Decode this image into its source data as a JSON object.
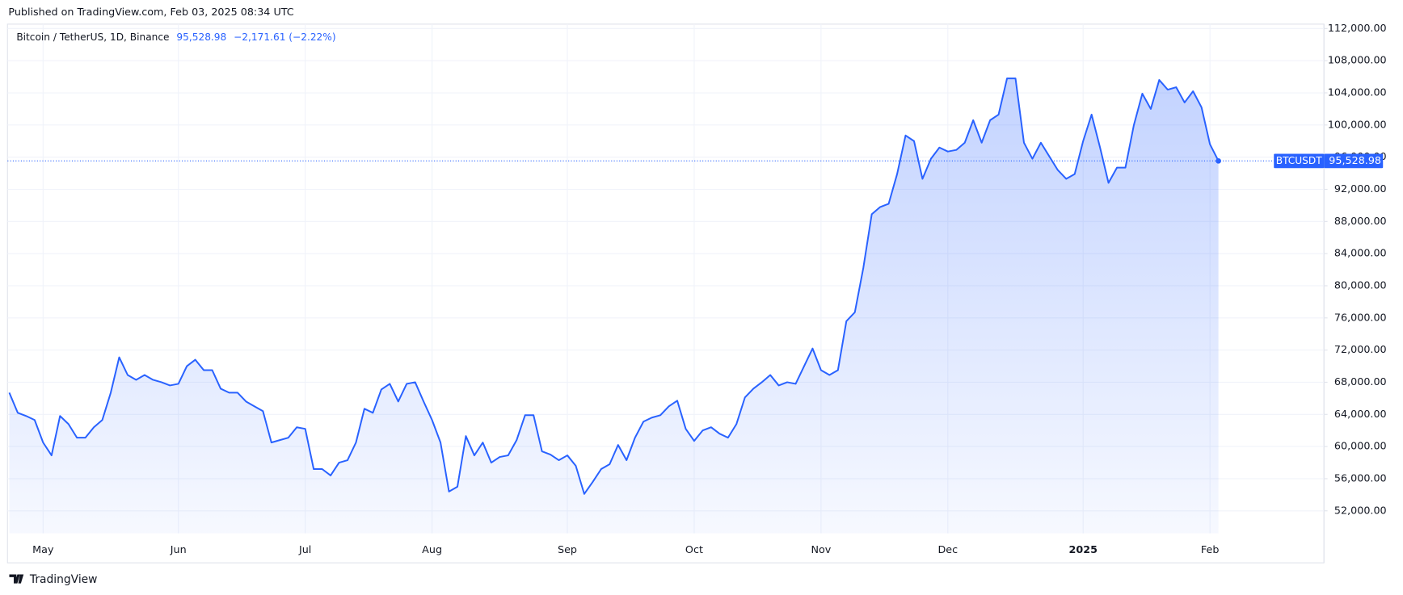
{
  "chart_data": {
    "type": "area",
    "title": "Published on TradingView.com, Feb 03, 2025 08:34 UTC",
    "subtitle": "Bitcoin / TetherUS, 1D, Binance",
    "last_label": "95,528.98",
    "change_label": "−2,171.61 (−2.22%)",
    "brand": "TradingView",
    "grid": true,
    "ylim": [
      49200,
      112550
    ],
    "yticks": [
      {
        "value": 52000,
        "label": "52,000.00"
      },
      {
        "value": 56000,
        "label": "56,000.00"
      },
      {
        "value": 60000,
        "label": "60,000.00"
      },
      {
        "value": 64000,
        "label": "64,000.00"
      },
      {
        "value": 68000,
        "label": "68,000.00"
      },
      {
        "value": 72000,
        "label": "72,000.00"
      },
      {
        "value": 76000,
        "label": "76,000.00"
      },
      {
        "value": 80000,
        "label": "80,000.00"
      },
      {
        "value": 84000,
        "label": "84,000.00"
      },
      {
        "value": 88000,
        "label": "88,000.00"
      },
      {
        "value": 92000,
        "label": "92,000.00"
      },
      {
        "value": 96000,
        "label": "96,000.00"
      },
      {
        "value": 100000,
        "label": "100,000.00"
      },
      {
        "value": 104000,
        "label": "104,000.00"
      },
      {
        "value": 108000,
        "label": "108,000.00"
      },
      {
        "value": 112000,
        "label": "112,000.00"
      }
    ],
    "categories": [
      null,
      null,
      null,
      null,
      "May",
      null,
      null,
      null,
      null,
      null,
      null,
      null,
      null,
      null,
      null,
      null,
      null,
      null,
      null,
      null,
      "Jun",
      null,
      null,
      null,
      null,
      null,
      null,
      null,
      null,
      null,
      null,
      null,
      null,
      null,
      null,
      "Jul",
      null,
      null,
      null,
      null,
      null,
      null,
      null,
      null,
      null,
      null,
      null,
      null,
      null,
      null,
      "Aug",
      null,
      null,
      null,
      null,
      null,
      null,
      null,
      null,
      null,
      null,
      null,
      null,
      null,
      null,
      null,
      "Sep",
      null,
      null,
      null,
      null,
      null,
      null,
      null,
      null,
      null,
      null,
      null,
      null,
      null,
      null,
      "Oct",
      null,
      null,
      null,
      null,
      null,
      null,
      null,
      null,
      null,
      null,
      null,
      null,
      null,
      null,
      "Nov",
      null,
      null,
      null,
      null,
      null,
      null,
      null,
      null,
      null,
      null,
      null,
      null,
      null,
      null,
      "Dec",
      null,
      null,
      null,
      null,
      null,
      null,
      null,
      null,
      null,
      null,
      null,
      null,
      null,
      null,
      null,
      "2025",
      null,
      null,
      null,
      null,
      null,
      null,
      null,
      null,
      null,
      null,
      null,
      null,
      null,
      null,
      "Feb",
      null
    ],
    "series": [
      {
        "name": "BTCUSDT",
        "color": "#2962ff",
        "values": [
          66700,
          64200,
          63800,
          63300,
          60500,
          58900,
          63800,
          62800,
          61100,
          61100,
          62400,
          63300,
          66700,
          71100,
          68900,
          68300,
          68900,
          68300,
          68000,
          67600,
          67800,
          70000,
          70800,
          69500,
          69500,
          67200,
          66700,
          66700,
          65600,
          65000,
          64400,
          60500,
          60800,
          61100,
          62400,
          62200,
          57200,
          57200,
          56400,
          58000,
          58300,
          60500,
          64700,
          64200,
          67100,
          67800,
          65600,
          67800,
          68000,
          65600,
          63300,
          60500,
          54400,
          55000,
          61300,
          58900,
          60500,
          58000,
          58700,
          58900,
          60800,
          63900,
          63900,
          59400,
          59000,
          58300,
          58900,
          57600,
          54100,
          55600,
          57200,
          57800,
          60200,
          58300,
          61100,
          63100,
          63600,
          63900,
          65000,
          65700,
          62200,
          60700,
          62000,
          62400,
          61600,
          61100,
          62800,
          66100,
          67200,
          68000,
          68900,
          67600,
          68000,
          67800,
          70000,
          72200,
          69500,
          68900,
          69500,
          75600,
          76700,
          82200,
          88900,
          89800,
          90200,
          93900,
          98700,
          98000,
          93300,
          95800,
          97200,
          96700,
          96900,
          97800,
          100600,
          97800,
          100600,
          101300,
          105800,
          105800,
          97800,
          95800,
          97800,
          96100,
          94400,
          93300,
          93900,
          98000,
          101300,
          97200,
          92800,
          94700,
          94700,
          100000,
          103900,
          102000,
          105600,
          104400,
          104700,
          102800,
          104200,
          102200,
          97600,
          95528.98
        ]
      }
    ]
  }
}
